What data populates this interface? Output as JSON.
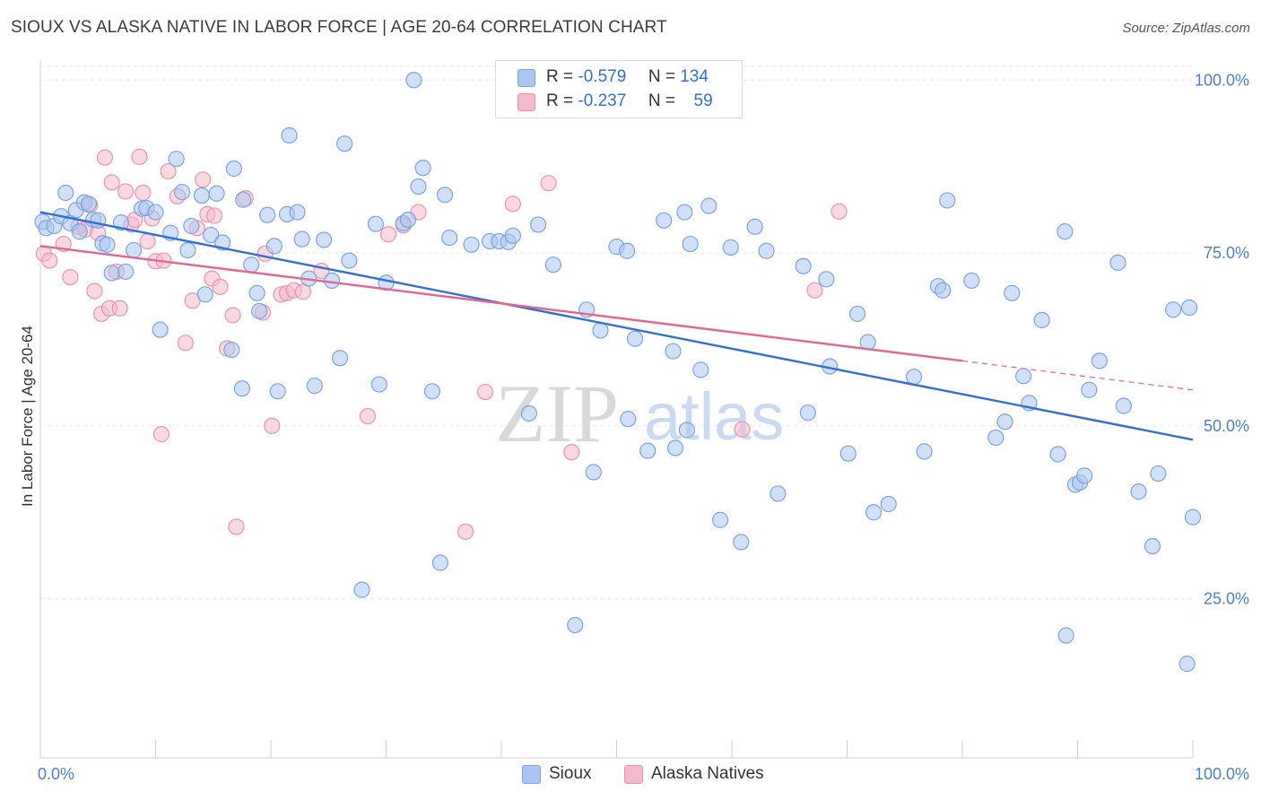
{
  "title": "SIOUX VS ALASKA NATIVE IN LABOR FORCE | AGE 20-64 CORRELATION CHART",
  "source": "Source: ZipAtlas.com",
  "watermark": {
    "zip": "ZIP",
    "atlas": "atlas"
  },
  "legend": {
    "rows": [
      {
        "r_label": "R =",
        "r_value": "-0.579",
        "n_label": "N =",
        "n_value": "134",
        "color": "#a9c7f2",
        "stroke": "#7ba3e3"
      },
      {
        "r_label": "R =",
        "r_value": "-0.237",
        "n_label": "N =",
        "n_value": "59",
        "color": "#f7b9cc",
        "stroke": "#ee90ad"
      }
    ]
  },
  "bottom_legend": [
    {
      "label": "Sioux",
      "color": "#a9c7f2",
      "stroke": "#7ba3e3"
    },
    {
      "label": "Alaska Natives",
      "color": "#f7b9cc",
      "stroke": "#ee90ad"
    }
  ],
  "chart_data": {
    "type": "scatter",
    "title": "SIOUX VS ALASKA NATIVE IN LABOR FORCE | AGE 20-64 CORRELATION CHART",
    "xlabel": "",
    "ylabel": "In Labor Force | Age 20-64",
    "xlim": [
      0,
      100
    ],
    "ylim": [
      2,
      102.5
    ],
    "x_tick_labels": [
      "0.0%",
      "100.0%"
    ],
    "y_ticks": [
      25,
      50,
      75,
      100
    ],
    "y_tick_labels": [
      "25.0%",
      "50.0%",
      "75.0%",
      "100.0%"
    ],
    "grid": true,
    "series": [
      {
        "name": "Sioux",
        "color": "#a9c7f2",
        "stroke": "#7ba3e3",
        "line_color": "#2f6fd6",
        "trend": {
          "x": [
            0,
            100
          ],
          "y": [
            80.9,
            48.0
          ]
        },
        "points": [
          [
            0.2,
            79.5
          ],
          [
            0.5,
            78.6
          ],
          [
            1.2,
            78.9
          ],
          [
            1.8,
            80.3
          ],
          [
            2.2,
            83.7
          ],
          [
            2.6,
            79.3
          ],
          [
            3.1,
            81.2
          ],
          [
            3.4,
            78.1
          ],
          [
            3.8,
            82.3
          ],
          [
            4.2,
            82.1
          ],
          [
            4.6,
            79.8
          ],
          [
            5.0,
            79.7
          ],
          [
            5.4,
            76.4
          ],
          [
            5.8,
            76.2
          ],
          [
            6.2,
            72.1
          ],
          [
            7.0,
            79.4
          ],
          [
            7.4,
            72.3
          ],
          [
            8.1,
            75.4
          ],
          [
            8.8,
            81.4
          ],
          [
            9.2,
            81.5
          ],
          [
            10.0,
            80.9
          ],
          [
            10.4,
            63.9
          ],
          [
            11.3,
            77.9
          ],
          [
            11.8,
            88.6
          ],
          [
            12.3,
            83.8
          ],
          [
            12.8,
            75.4
          ],
          [
            13.1,
            78.9
          ],
          [
            14.0,
            83.3
          ],
          [
            14.3,
            69.0
          ],
          [
            14.8,
            77.6
          ],
          [
            15.3,
            83.6
          ],
          [
            15.8,
            76.5
          ],
          [
            16.6,
            61.0
          ],
          [
            16.8,
            87.2
          ],
          [
            17.5,
            55.4
          ],
          [
            17.6,
            82.7
          ],
          [
            18.3,
            73.3
          ],
          [
            18.8,
            69.2
          ],
          [
            19.0,
            66.6
          ],
          [
            19.7,
            80.5
          ],
          [
            20.3,
            76.0
          ],
          [
            20.6,
            55.0
          ],
          [
            21.4,
            80.6
          ],
          [
            21.6,
            92.0
          ],
          [
            22.3,
            80.9
          ],
          [
            22.7,
            77.0
          ],
          [
            23.3,
            71.3
          ],
          [
            23.8,
            55.8
          ],
          [
            24.6,
            76.9
          ],
          [
            25.3,
            71.0
          ],
          [
            26.0,
            59.8
          ],
          [
            26.4,
            90.8
          ],
          [
            26.8,
            73.9
          ],
          [
            27.9,
            26.3
          ],
          [
            29.1,
            79.2
          ],
          [
            29.4,
            56.0
          ],
          [
            30.0,
            70.7
          ],
          [
            31.5,
            79.3
          ],
          [
            31.9,
            79.8
          ],
          [
            32.4,
            100.0
          ],
          [
            32.8,
            84.6
          ],
          [
            33.2,
            87.3
          ],
          [
            34.0,
            55.0
          ],
          [
            34.7,
            30.2
          ],
          [
            35.1,
            83.4
          ],
          [
            35.5,
            77.2
          ],
          [
            37.4,
            76.2
          ],
          [
            39.0,
            76.7
          ],
          [
            39.8,
            76.7
          ],
          [
            40.6,
            76.6
          ],
          [
            41.0,
            77.5
          ],
          [
            42.4,
            51.8
          ],
          [
            43.2,
            79.1
          ],
          [
            44.5,
            73.3
          ],
          [
            46.4,
            21.2
          ],
          [
            47.4,
            66.8
          ],
          [
            48.0,
            43.3
          ],
          [
            48.6,
            63.8
          ],
          [
            50.0,
            75.9
          ],
          [
            50.9,
            75.3
          ],
          [
            51.0,
            51.0
          ],
          [
            51.6,
            62.6
          ],
          [
            52.7,
            46.4
          ],
          [
            54.1,
            79.7
          ],
          [
            54.9,
            60.8
          ],
          [
            55.1,
            46.8
          ],
          [
            55.9,
            80.9
          ],
          [
            56.1,
            49.4
          ],
          [
            56.4,
            76.3
          ],
          [
            57.3,
            58.1
          ],
          [
            58.0,
            81.8
          ],
          [
            59.0,
            36.4
          ],
          [
            59.9,
            75.8
          ],
          [
            60.8,
            33.2
          ],
          [
            62.0,
            78.8
          ],
          [
            63.0,
            75.3
          ],
          [
            64.0,
            40.2
          ],
          [
            66.2,
            73.1
          ],
          [
            66.6,
            51.9
          ],
          [
            68.2,
            71.2
          ],
          [
            68.5,
            58.6
          ],
          [
            70.1,
            46.0
          ],
          [
            70.9,
            66.2
          ],
          [
            71.8,
            62.1
          ],
          [
            72.3,
            37.5
          ],
          [
            73.6,
            38.7
          ],
          [
            75.8,
            57.1
          ],
          [
            76.7,
            46.3
          ],
          [
            77.9,
            70.2
          ],
          [
            78.3,
            69.6
          ],
          [
            78.7,
            82.6
          ],
          [
            80.8,
            71.0
          ],
          [
            82.9,
            48.3
          ],
          [
            83.7,
            50.6
          ],
          [
            84.3,
            69.2
          ],
          [
            85.3,
            57.2
          ],
          [
            85.8,
            53.3
          ],
          [
            86.9,
            65.3
          ],
          [
            88.3,
            45.9
          ],
          [
            88.9,
            78.1
          ],
          [
            89.0,
            19.7
          ],
          [
            89.8,
            41.5
          ],
          [
            90.2,
            41.8
          ],
          [
            90.6,
            42.8
          ],
          [
            91.0,
            55.2
          ],
          [
            91.9,
            59.4
          ],
          [
            93.5,
            73.6
          ],
          [
            94.0,
            52.9
          ],
          [
            95.3,
            40.5
          ],
          [
            96.5,
            32.6
          ],
          [
            97.0,
            43.1
          ],
          [
            98.3,
            66.8
          ],
          [
            99.5,
            15.6
          ],
          [
            99.7,
            67.1
          ],
          [
            100.0,
            36.8
          ]
        ]
      },
      {
        "name": "Alaska Natives",
        "color": "#f7b9cc",
        "stroke": "#ee90ad",
        "line_color": "#e26690",
        "trend": {
          "x": [
            0,
            80
          ],
          "y": [
            76.0,
            59.4
          ]
        },
        "trend_dashed": {
          "x": [
            80,
            100
          ],
          "y": [
            59.4,
            55.2
          ]
        },
        "points": [
          [
            0.3,
            74.9
          ],
          [
            0.8,
            73.9
          ],
          [
            2.0,
            76.3
          ],
          [
            2.6,
            71.5
          ],
          [
            3.3,
            78.8
          ],
          [
            3.9,
            78.4
          ],
          [
            4.3,
            81.9
          ],
          [
            4.7,
            69.5
          ],
          [
            5.0,
            77.9
          ],
          [
            5.3,
            66.2
          ],
          [
            5.6,
            88.8
          ],
          [
            6.0,
            67.0
          ],
          [
            6.2,
            85.2
          ],
          [
            6.6,
            72.3
          ],
          [
            6.9,
            67.0
          ],
          [
            7.4,
            83.9
          ],
          [
            7.9,
            79.1
          ],
          [
            8.2,
            79.8
          ],
          [
            8.6,
            88.9
          ],
          [
            8.9,
            83.7
          ],
          [
            9.3,
            76.7
          ],
          [
            9.7,
            80.0
          ],
          [
            10.0,
            73.8
          ],
          [
            10.5,
            48.8
          ],
          [
            10.7,
            73.9
          ],
          [
            11.1,
            86.8
          ],
          [
            11.9,
            83.2
          ],
          [
            12.6,
            62.0
          ],
          [
            13.2,
            68.1
          ],
          [
            13.6,
            78.6
          ],
          [
            14.1,
            85.6
          ],
          [
            14.5,
            80.6
          ],
          [
            14.9,
            71.3
          ],
          [
            15.1,
            80.4
          ],
          [
            15.6,
            70.1
          ],
          [
            16.2,
            61.2
          ],
          [
            16.7,
            66.0
          ],
          [
            17.0,
            35.4
          ],
          [
            17.8,
            82.9
          ],
          [
            19.3,
            66.4
          ],
          [
            19.5,
            74.9
          ],
          [
            20.1,
            50.0
          ],
          [
            20.9,
            69.0
          ],
          [
            21.4,
            69.2
          ],
          [
            22.0,
            69.6
          ],
          [
            22.8,
            69.4
          ],
          [
            24.4,
            72.4
          ],
          [
            28.4,
            51.4
          ],
          [
            30.2,
            77.7
          ],
          [
            31.5,
            79.0
          ],
          [
            32.8,
            80.9
          ],
          [
            36.9,
            34.7
          ],
          [
            38.6,
            54.9
          ],
          [
            41.0,
            82.1
          ],
          [
            44.1,
            85.1
          ],
          [
            46.1,
            46.2
          ],
          [
            60.9,
            49.5
          ],
          [
            67.2,
            69.6
          ],
          [
            69.3,
            81.0
          ]
        ]
      }
    ]
  }
}
